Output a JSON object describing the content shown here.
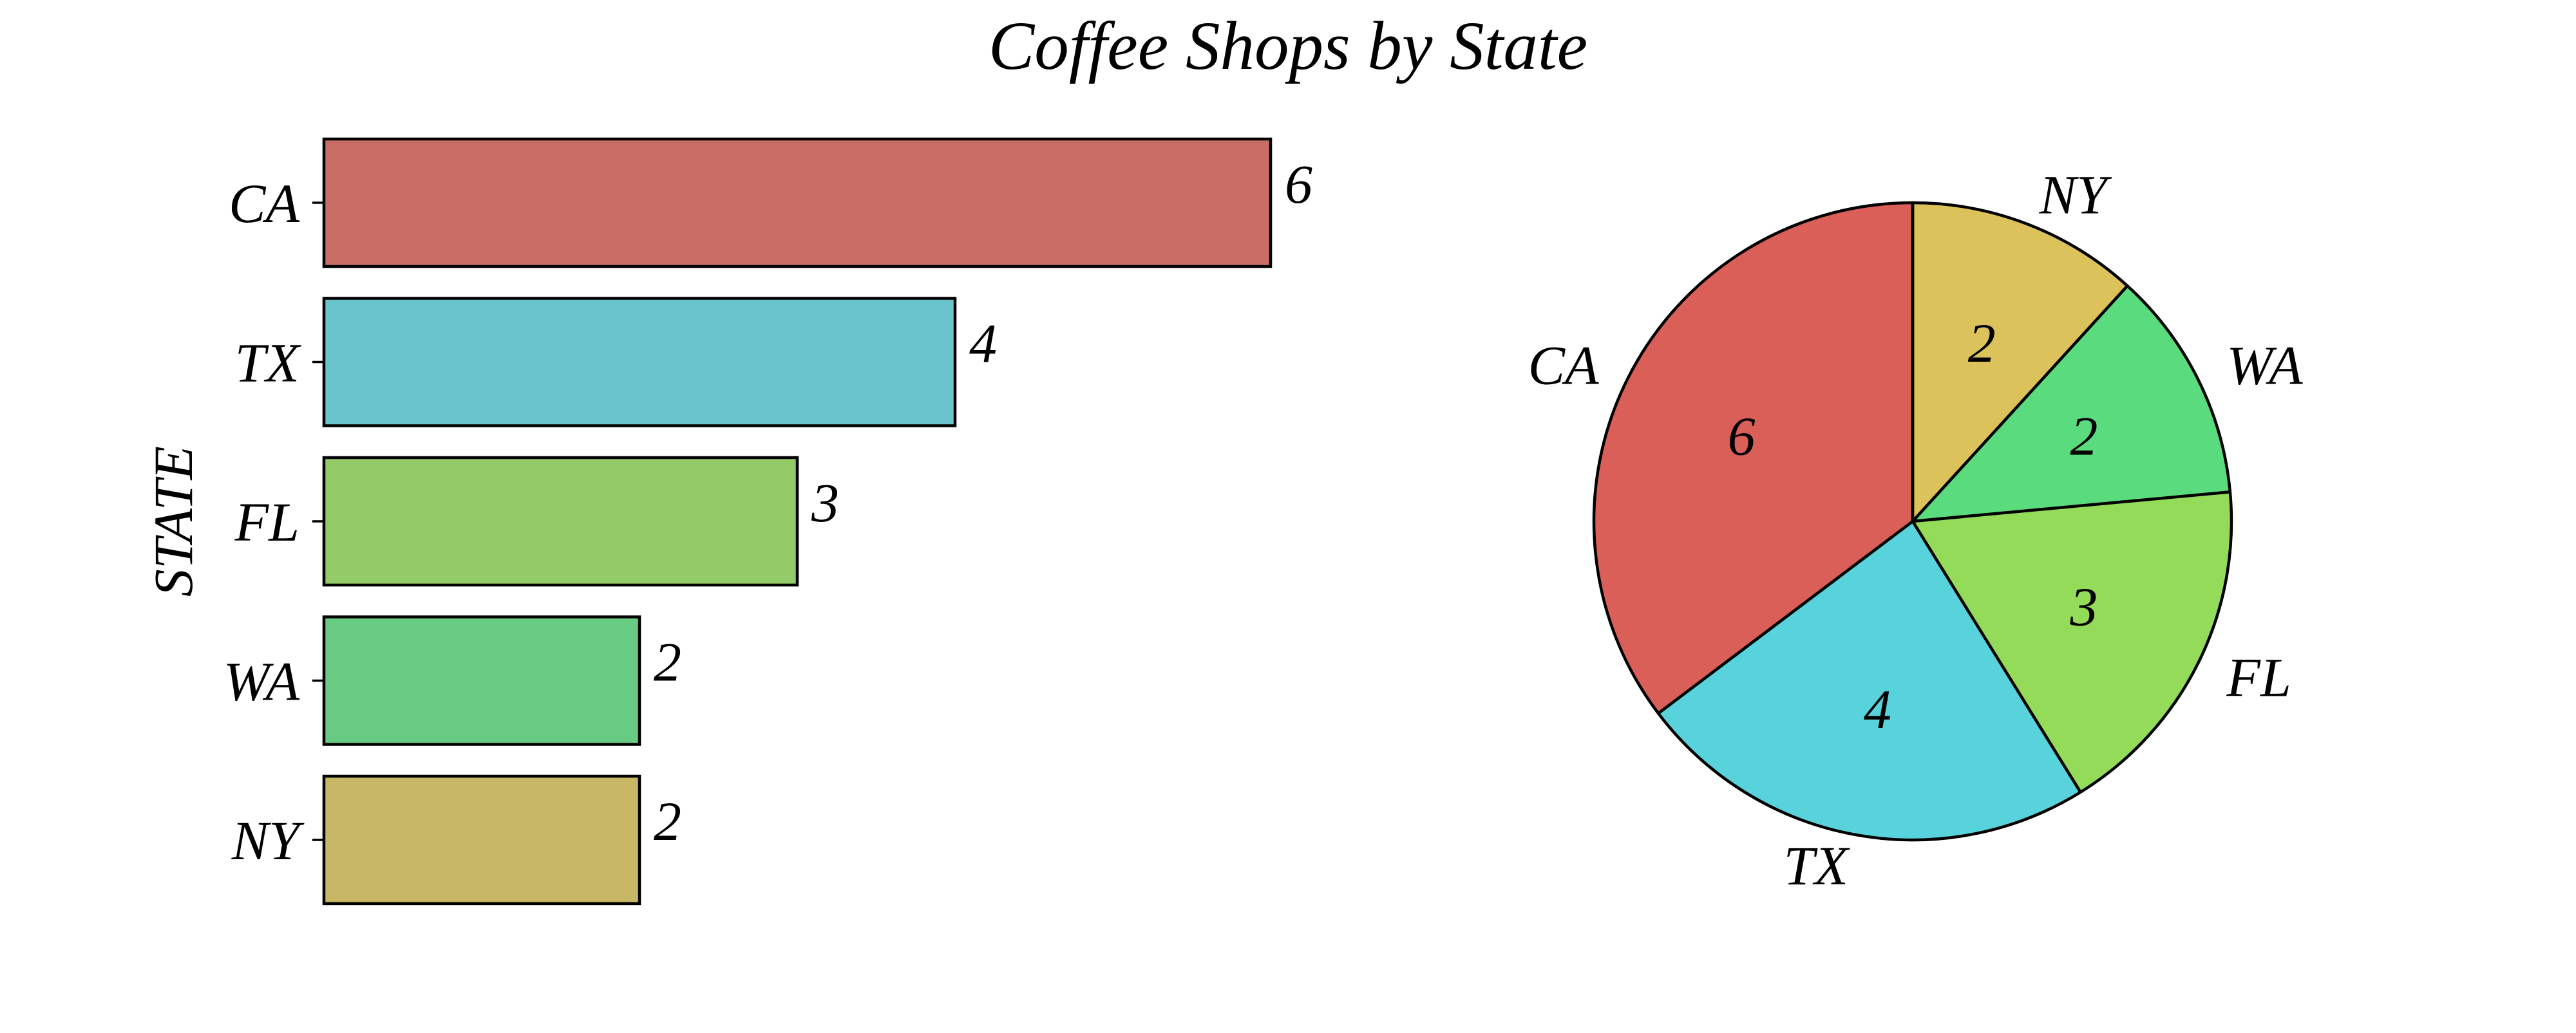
{
  "chart_title": "Coffee Shops by State",
  "chart_data": [
    {
      "type": "bar",
      "orientation": "horizontal",
      "title": "",
      "xlabel": "",
      "ylabel": "STATE",
      "categories": [
        "CA",
        "TX",
        "FL",
        "WA",
        "NY"
      ],
      "values": [
        6,
        4,
        3,
        2,
        2
      ],
      "data_labels": [
        "6",
        "4",
        "3",
        "2",
        "2"
      ],
      "colors": [
        "#c96d67",
        "#69c5cb",
        "#94cb69",
        "#67cb84",
        "#c8b765"
      ],
      "xlim": [
        0,
        6
      ],
      "grid": false,
      "x_axis_visible": false
    },
    {
      "type": "pie",
      "title": "",
      "categories": [
        "NY",
        "WA",
        "FL",
        "TX",
        "CA"
      ],
      "values": [
        2,
        2,
        3,
        4,
        6
      ],
      "data_labels": [
        "2",
        "2",
        "3",
        "4",
        "6"
      ],
      "colors": [
        "#dbc25a",
        "#59db7e",
        "#93db59",
        "#59d3db",
        "#db5f59"
      ],
      "start_angle": "12 o'clock",
      "direction": "clockwise"
    }
  ]
}
